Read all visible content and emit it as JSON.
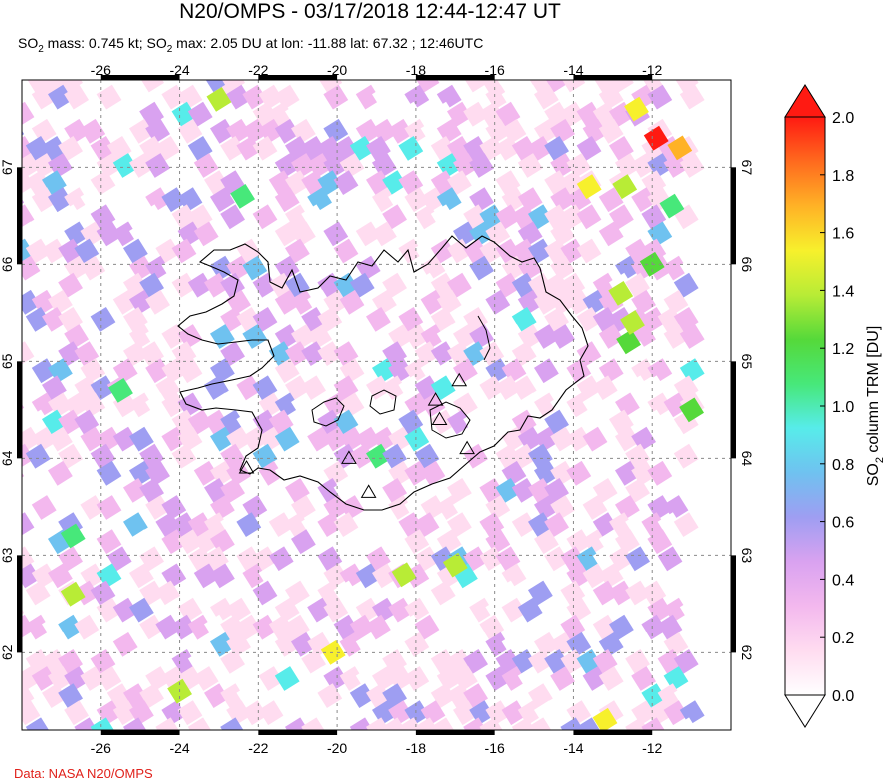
{
  "title": "N20/OMPS - 03/17/2018 12:44-12:47 UT",
  "subtitle": {
    "prefix": "SO",
    "sub1": "2",
    "mid": " mass: 0.745 kt; SO",
    "sub2": "2",
    "suffix": " max: 2.05 DU at lon: -11.88 lat: 67.32 ; 12:46UTC"
  },
  "credit": "Data: NASA N20/OMPS",
  "chart_data": {
    "type": "heatmap",
    "map": {
      "lon_range": [
        -28,
        -10
      ],
      "lat_range": [
        61.2,
        67.9
      ],
      "lon_ticks": [
        -26,
        -24,
        -22,
        -20,
        -18,
        -16,
        -14,
        -12
      ],
      "lat_ticks": [
        62,
        63,
        64,
        65,
        66,
        67
      ],
      "grid": true
    },
    "colorbar": {
      "label_prefix": "SO",
      "label_sub": "2",
      "label_suffix": " column TRM [DU]",
      "ticks": [
        "0.0",
        "0.2",
        "0.4",
        "0.6",
        "0.8",
        "1.0",
        "1.2",
        "1.4",
        "1.6",
        "1.8",
        "2.0"
      ],
      "range": [
        0.0,
        2.0
      ],
      "colors": [
        "#ffffff",
        "#ffdcf0",
        "#f3b8ee",
        "#d9a2f0",
        "#9e9ef2",
        "#6fc2f0",
        "#57ecea",
        "#47e87a",
        "#55d93a",
        "#b8ec36",
        "#f7f02c",
        "#ffb226",
        "#ff6a1e",
        "#ff1a12"
      ]
    },
    "max": {
      "value": 2.05,
      "lon": -11.88,
      "lat": 67.32
    },
    "volcano_markers": [
      {
        "lon": -22.3,
        "lat": 63.9
      },
      {
        "lon": -19.7,
        "lat": 64.0
      },
      {
        "lon": -19.2,
        "lat": 63.65
      },
      {
        "lon": -17.5,
        "lat": 64.6
      },
      {
        "lon": -17.4,
        "lat": 64.4
      },
      {
        "lon": -16.9,
        "lat": 64.8
      },
      {
        "lon": -16.7,
        "lat": 64.1
      }
    ],
    "highlight_pixels": [
      {
        "lon": -11.9,
        "lat": 67.3,
        "value": 2.05
      },
      {
        "lon": -11.3,
        "lat": 67.2,
        "value": 1.7
      },
      {
        "lon": -12.4,
        "lat": 67.6,
        "value": 1.5
      },
      {
        "lon": -23.0,
        "lat": 67.7,
        "value": 1.4
      },
      {
        "lon": -12.7,
        "lat": 66.8,
        "value": 1.4
      },
      {
        "lon": -13.6,
        "lat": 66.8,
        "value": 1.5
      },
      {
        "lon": -12.8,
        "lat": 65.7,
        "value": 1.3
      },
      {
        "lon": -12.6,
        "lat": 65.2,
        "value": 1.2
      },
      {
        "lon": -12.5,
        "lat": 65.4,
        "value": 1.3
      },
      {
        "lon": -11.0,
        "lat": 64.5,
        "value": 1.2
      },
      {
        "lon": -17.0,
        "lat": 62.9,
        "value": 1.4
      },
      {
        "lon": -18.3,
        "lat": 62.8,
        "value": 1.3
      },
      {
        "lon": -20.1,
        "lat": 62.0,
        "value": 1.5
      },
      {
        "lon": -24.0,
        "lat": 61.6,
        "value": 1.4
      },
      {
        "lon": -26.7,
        "lat": 62.6,
        "value": 1.3
      },
      {
        "lon": -13.2,
        "lat": 61.3,
        "value": 1.5
      },
      {
        "lon": -22.4,
        "lat": 66.7,
        "value": 1.1
      },
      {
        "lon": -11.5,
        "lat": 66.6,
        "value": 1.0
      },
      {
        "lon": -25.5,
        "lat": 64.7,
        "value": 1.0
      },
      {
        "lon": -26.7,
        "lat": 63.2,
        "value": 1.0
      },
      {
        "lon": -12.0,
        "lat": 66.0,
        "value": 1.2
      }
    ]
  }
}
